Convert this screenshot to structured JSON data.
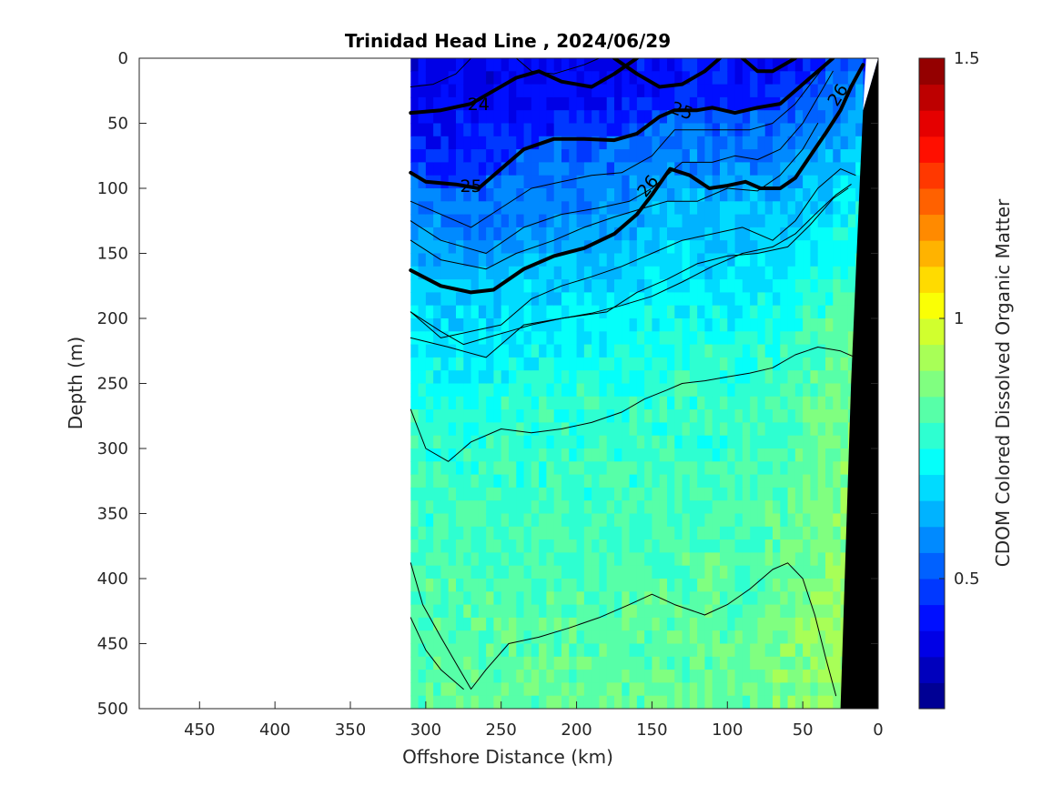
{
  "chart_data": {
    "type": "heatmap",
    "title": "Trinidad Head Line , 2024/06/29",
    "xlabel": "Offshore Distance (km)",
    "ylabel": "Depth (m)",
    "colorbar_label": "CDOM Colored Dissolved Organic Matter",
    "xlim": [
      490,
      0
    ],
    "ylim": [
      0,
      500
    ],
    "x_reversed": true,
    "y_reversed": true,
    "x_ticks": [
      450,
      400,
      350,
      300,
      250,
      200,
      150,
      100,
      50,
      0
    ],
    "y_ticks": [
      0,
      50,
      100,
      150,
      200,
      250,
      300,
      350,
      400,
      450,
      500
    ],
    "colorbar": {
      "min": 0.25,
      "max": 1.5,
      "levels": 25,
      "ticks": [
        0.5,
        1,
        1.5
      ],
      "tick_labels": [
        "0.5",
        "1",
        "1.5"
      ],
      "colormap": "jet"
    },
    "data_extent_km": [
      310,
      0
    ],
    "grid": false,
    "field_profile": {
      "x": [
        310,
        280,
        250,
        220,
        190,
        160,
        130,
        100,
        80,
        60,
        40,
        20
      ],
      "depth_cdom": [
        [
          0,
          0.45
        ],
        [
          50,
          0.5
        ],
        [
          100,
          0.56
        ],
        [
          150,
          0.64
        ],
        [
          200,
          0.7
        ],
        [
          250,
          0.76
        ],
        [
          300,
          0.78
        ],
        [
          400,
          0.81
        ],
        [
          500,
          0.84
        ]
      ],
      "nearshore_enhancement": 0.1
    },
    "density_contours": [
      {
        "sigma": 24,
        "thick": true,
        "label": "24",
        "points": [
          [
            310,
            42
          ],
          [
            290,
            40
          ],
          [
            270,
            35
          ],
          [
            255,
            25
          ],
          [
            240,
            15
          ],
          [
            225,
            10
          ],
          [
            210,
            18
          ],
          [
            190,
            22
          ],
          [
            175,
            12
          ],
          [
            160,
            0
          ]
        ]
      },
      {
        "sigma": 24.5,
        "thick": false,
        "points": [
          [
            310,
            22
          ],
          [
            295,
            20
          ],
          [
            280,
            12
          ],
          [
            270,
            0
          ]
        ]
      },
      {
        "sigma": 24.75,
        "thick": false,
        "points": [
          [
            240,
            0
          ],
          [
            230,
            10
          ],
          [
            215,
            12
          ],
          [
            195,
            5
          ],
          [
            185,
            0
          ]
        ]
      },
      {
        "sigma": 25,
        "thick": true,
        "label": "25",
        "points": [
          [
            310,
            88
          ],
          [
            300,
            95
          ],
          [
            280,
            97
          ],
          [
            265,
            100
          ],
          [
            250,
            85
          ],
          [
            235,
            70
          ],
          [
            215,
            62
          ],
          [
            195,
            62
          ],
          [
            175,
            63
          ],
          [
            160,
            58
          ],
          [
            145,
            45
          ],
          [
            135,
            40
          ],
          [
            120,
            40
          ],
          [
            110,
            38
          ],
          [
            95,
            42
          ],
          [
            80,
            38
          ],
          [
            65,
            35
          ],
          [
            50,
            20
          ],
          [
            40,
            10
          ],
          [
            30,
            0
          ]
        ]
      },
      {
        "sigma": 25,
        "thick": true,
        "points": [
          [
            175,
            0
          ],
          [
            160,
            12
          ],
          [
            145,
            22
          ],
          [
            130,
            20
          ],
          [
            115,
            10
          ],
          [
            105,
            0
          ]
        ]
      },
      {
        "sigma": 25,
        "thick": true,
        "points": [
          [
            90,
            0
          ],
          [
            80,
            10
          ],
          [
            70,
            10
          ],
          [
            55,
            0
          ]
        ]
      },
      {
        "sigma": 25.25,
        "thick": false,
        "points": [
          [
            310,
            110
          ],
          [
            290,
            120
          ],
          [
            270,
            130
          ],
          [
            250,
            115
          ],
          [
            230,
            100
          ],
          [
            210,
            95
          ],
          [
            190,
            90
          ],
          [
            170,
            88
          ],
          [
            150,
            75
          ],
          [
            135,
            55
          ],
          [
            120,
            55
          ],
          [
            100,
            55
          ],
          [
            85,
            55
          ],
          [
            70,
            50
          ],
          [
            55,
            35
          ],
          [
            45,
            20
          ],
          [
            35,
            5
          ],
          [
            30,
            0
          ]
        ]
      },
      {
        "sigma": 25.5,
        "thick": false,
        "points": [
          [
            310,
            125
          ],
          [
            290,
            140
          ],
          [
            260,
            150
          ],
          [
            235,
            130
          ],
          [
            210,
            120
          ],
          [
            185,
            115
          ],
          [
            165,
            110
          ],
          [
            150,
            100
          ],
          [
            130,
            80
          ],
          [
            110,
            80
          ],
          [
            95,
            75
          ],
          [
            80,
            78
          ],
          [
            65,
            70
          ],
          [
            50,
            50
          ],
          [
            40,
            30
          ],
          [
            30,
            10
          ]
        ]
      },
      {
        "sigma": 25.75,
        "thick": false,
        "points": [
          [
            310,
            140
          ],
          [
            290,
            155
          ],
          [
            260,
            162
          ],
          [
            240,
            150
          ],
          [
            215,
            140
          ],
          [
            195,
            130
          ],
          [
            175,
            122
          ],
          [
            155,
            115
          ],
          [
            140,
            110
          ],
          [
            120,
            110
          ],
          [
            100,
            100
          ],
          [
            80,
            102
          ],
          [
            65,
            90
          ],
          [
            50,
            70
          ],
          [
            40,
            50
          ]
        ]
      },
      {
        "sigma": 26,
        "thick": true,
        "label": "26",
        "points": [
          [
            310,
            163
          ],
          [
            290,
            175
          ],
          [
            270,
            180
          ],
          [
            255,
            178
          ],
          [
            235,
            162
          ],
          [
            215,
            152
          ],
          [
            195,
            146
          ],
          [
            175,
            135
          ],
          [
            160,
            120
          ],
          [
            150,
            105
          ],
          [
            138,
            85
          ],
          [
            125,
            90
          ],
          [
            112,
            100
          ],
          [
            100,
            98
          ],
          [
            88,
            95
          ],
          [
            78,
            100
          ],
          [
            65,
            100
          ],
          [
            55,
            92
          ],
          [
            45,
            75
          ],
          [
            35,
            58
          ],
          [
            25,
            40
          ],
          [
            18,
            22
          ],
          [
            10,
            5
          ]
        ]
      },
      {
        "sigma": 26.25,
        "thick": false,
        "points": [
          [
            310,
            195
          ],
          [
            290,
            215
          ],
          [
            270,
            210
          ],
          [
            250,
            205
          ],
          [
            230,
            185
          ],
          [
            210,
            175
          ],
          [
            190,
            168
          ],
          [
            170,
            160
          ],
          [
            150,
            150
          ],
          [
            130,
            140
          ],
          [
            110,
            135
          ],
          [
            90,
            130
          ],
          [
            70,
            140
          ],
          [
            55,
            125
          ],
          [
            40,
            100
          ],
          [
            25,
            85
          ],
          [
            15,
            90
          ]
        ]
      },
      {
        "sigma": 26.5,
        "thick": false,
        "points": [
          [
            310,
            215
          ],
          [
            285,
            222
          ],
          [
            260,
            230
          ],
          [
            235,
            205
          ],
          [
            210,
            200
          ],
          [
            180,
            195
          ],
          [
            160,
            180
          ],
          [
            140,
            170
          ],
          [
            120,
            158
          ],
          [
            100,
            152
          ],
          [
            80,
            150
          ],
          [
            60,
            145
          ],
          [
            45,
            128
          ],
          [
            30,
            108
          ],
          [
            20,
            100
          ]
        ]
      },
      {
        "sigma": 26.6,
        "thick": false,
        "points": [
          [
            310,
            195
          ],
          [
            290,
            210
          ],
          [
            275,
            220
          ],
          [
            260,
            215
          ],
          [
            245,
            210
          ],
          [
            230,
            205
          ],
          [
            210,
            200
          ],
          [
            190,
            196
          ],
          [
            170,
            190
          ],
          [
            150,
            183
          ],
          [
            130,
            172
          ],
          [
            110,
            160
          ],
          [
            90,
            150
          ],
          [
            70,
            145
          ],
          [
            55,
            135
          ],
          [
            40,
            118
          ],
          [
            28,
            105
          ],
          [
            18,
            97
          ]
        ]
      },
      {
        "sigma": 26.7,
        "thick": false,
        "points": [
          [
            310,
            270
          ],
          [
            300,
            300
          ],
          [
            285,
            310
          ],
          [
            270,
            295
          ],
          [
            250,
            285
          ],
          [
            230,
            288
          ],
          [
            210,
            285
          ],
          [
            190,
            280
          ],
          [
            170,
            272
          ],
          [
            155,
            262
          ],
          [
            140,
            255
          ],
          [
            130,
            250
          ],
          [
            115,
            248
          ],
          [
            100,
            245
          ],
          [
            85,
            242
          ],
          [
            70,
            238
          ],
          [
            55,
            228
          ],
          [
            40,
            222
          ],
          [
            25,
            225
          ],
          [
            15,
            230
          ]
        ]
      },
      {
        "sigma": 26.75,
        "thick": false,
        "points": [
          [
            310,
            388
          ],
          [
            302,
            420
          ],
          [
            290,
            445
          ],
          [
            280,
            465
          ],
          [
            270,
            485
          ],
          [
            260,
            470
          ],
          [
            245,
            450
          ],
          [
            225,
            445
          ],
          [
            205,
            438
          ],
          [
            185,
            430
          ],
          [
            165,
            420
          ],
          [
            150,
            412
          ],
          [
            135,
            420
          ],
          [
            115,
            428
          ],
          [
            100,
            420
          ],
          [
            85,
            408
          ],
          [
            70,
            393
          ],
          [
            60,
            388
          ],
          [
            50,
            400
          ],
          [
            42,
            428
          ],
          [
            35,
            460
          ],
          [
            28,
            490
          ]
        ]
      },
      {
        "sigma": 27,
        "thick": false,
        "points": [
          [
            310,
            430
          ],
          [
            300,
            455
          ],
          [
            290,
            470
          ],
          [
            275,
            485
          ]
        ]
      }
    ]
  }
}
